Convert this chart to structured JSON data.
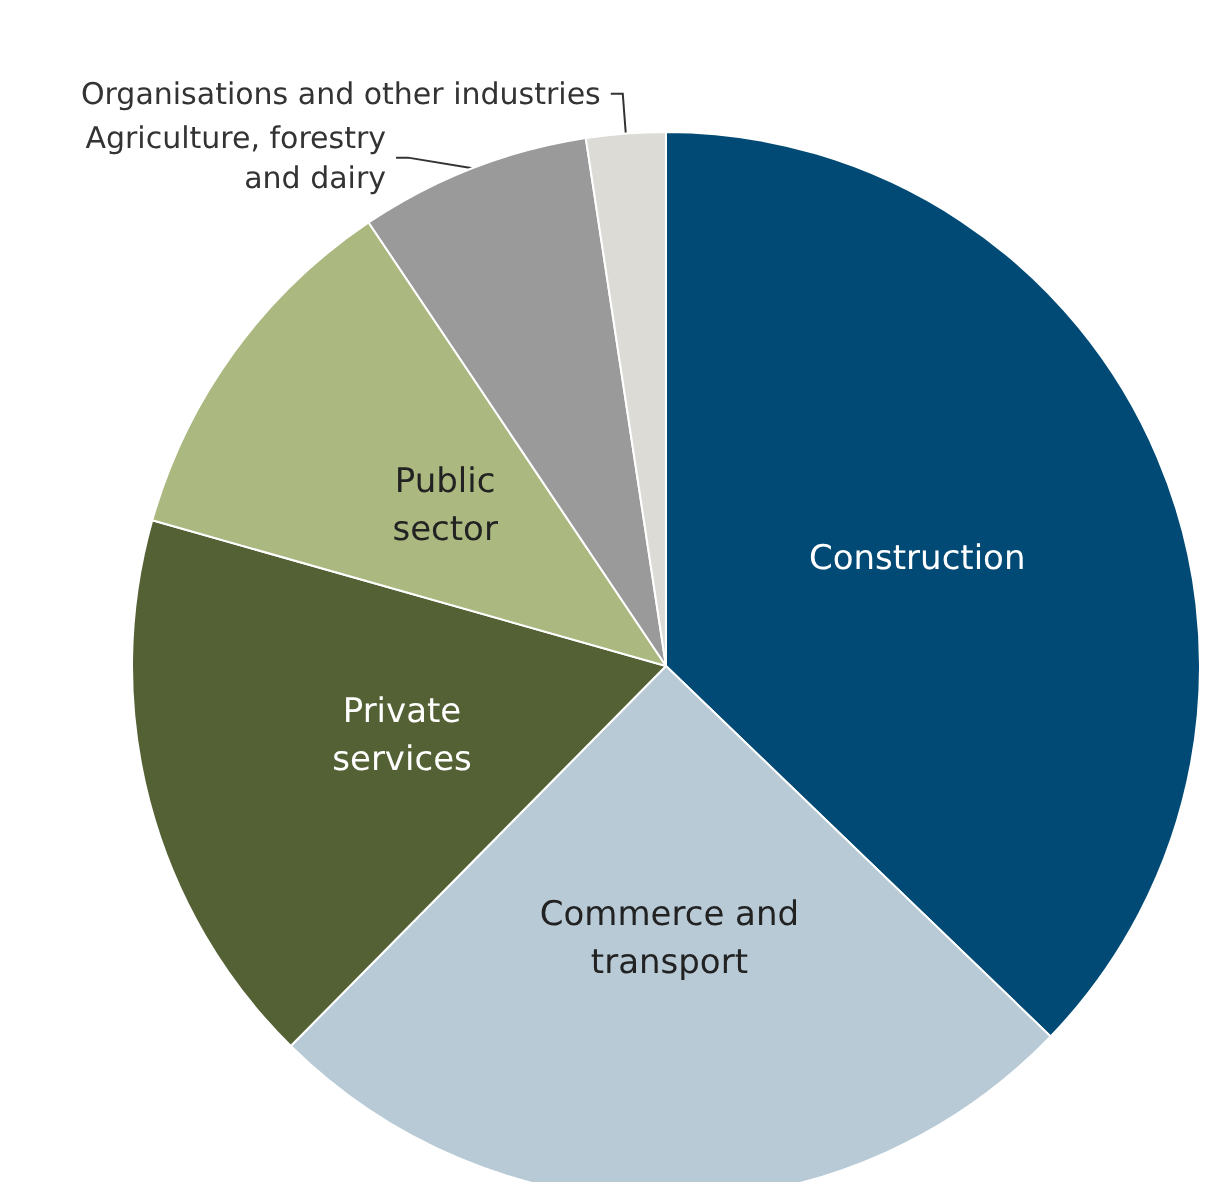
{
  "chart_data": {
    "type": "pie",
    "categories": [
      "Construction",
      "Commerce and\ntransport",
      "Private\nservices",
      "Public\nsector",
      "Agriculture, forestry\nand dairy",
      "Organisations and other industries"
    ],
    "values": [
      37.2,
      25.2,
      17.0,
      11.2,
      7.0,
      2.4
    ],
    "colors": [
      "#004a75",
      "#b7cad6",
      "#546135",
      "#abb880",
      "#9a9a9a",
      "#dcdbd6"
    ]
  }
}
